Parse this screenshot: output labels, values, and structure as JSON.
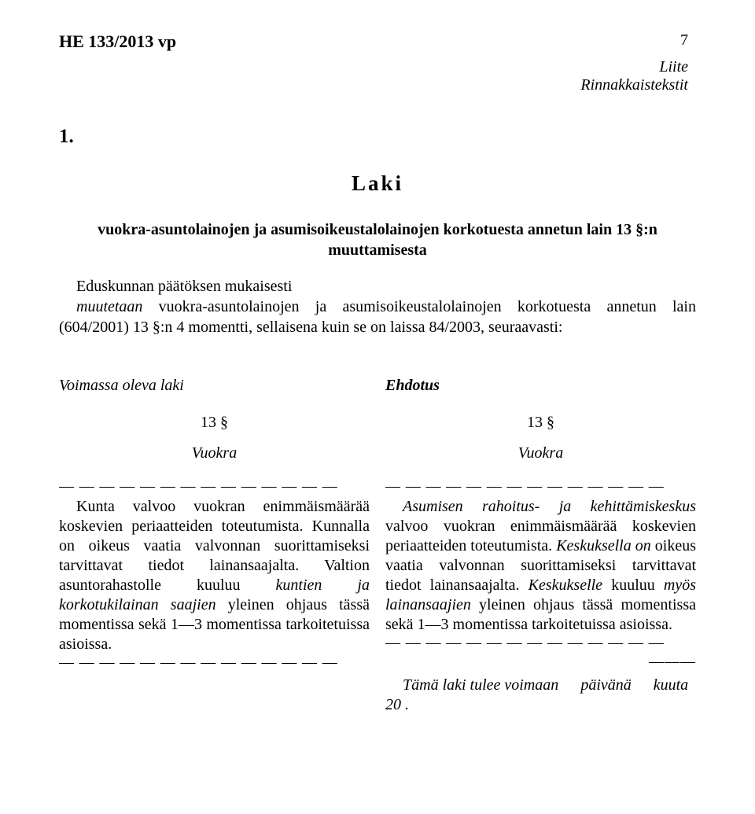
{
  "header": {
    "doc_id": "HE 133/2013 vp",
    "page_number": "7",
    "appendix_line1": "Liite",
    "appendix_line2": "Rinnakkaistekstit"
  },
  "section_number": "1.",
  "laki": "Laki",
  "law_subtitle": "vuokra-asuntolainojen ja asumisoikeustalolainojen korkotuesta annetun lain 13 §:n muuttamisesta",
  "intro_prefix": "Eduskunnan päätöksen mukaisesti",
  "intro_body": " vuokra-asuntolainojen ja asumisoikeustalolainojen korkotuesta annetun lain (604/2001) 13 §:n 4 momentti, sellaisena kuin se on laissa 84/2003, seuraavasti:",
  "intro_italic": "muutetaan",
  "columns": {
    "left": {
      "title": "Voimassa oleva laki",
      "section": "13 §",
      "section_name": "Vuokra",
      "dashes": "— — — — — — — — — — — — — —",
      "para": "Kunta valvoo vuokran enimmäismäärää koskevien periaatteiden toteutumista. Kunnalla on oikeus vaatia valvonnan suorittamiseksi tarvittavat tiedot lainansaajalta. Valtion asuntorahastolle kuuluu ",
      "para_italic1": "kuntien ja korkotukilainan saajien",
      "para_tail": " yleinen ohjaus tässä momentissa sekä 1—3 momentissa tarkoitetuissa asioissa.",
      "dashes_end": "— — — — — — — — — — — — — —"
    },
    "right": {
      "title": "Ehdotus",
      "section": "13 §",
      "section_name": "Vuokra",
      "dashes": "— — — — — — — — — — — — — —",
      "para_italic1": "Asumisen rahoitus- ja kehittämiskeskus",
      "para_mid1": " valvoo vuokran enimmäismäärää koskevien periaatteiden toteutumista. ",
      "para_italic2": "Keskuksella on",
      "para_mid2": " oikeus vaatia valvonnan suorittamiseksi tarvittavat tiedot lainansaajalta. ",
      "para_italic3": "Keskukselle",
      "para_mid3": " kuuluu ",
      "para_italic4": "myös lainansaajien",
      "para_tail": " yleinen ohjaus tässä momentissa sekä 1—3 momentissa tarkoitetuissa asioissa.",
      "dashes_end": "— — — — — — — — — — — — — —",
      "dashes_short": "———",
      "effective_pre": "Tämä laki tulee voimaan",
      "effective_mid": "päivänä",
      "effective_tail": "kuuta",
      "effective_year": "20  ."
    }
  }
}
